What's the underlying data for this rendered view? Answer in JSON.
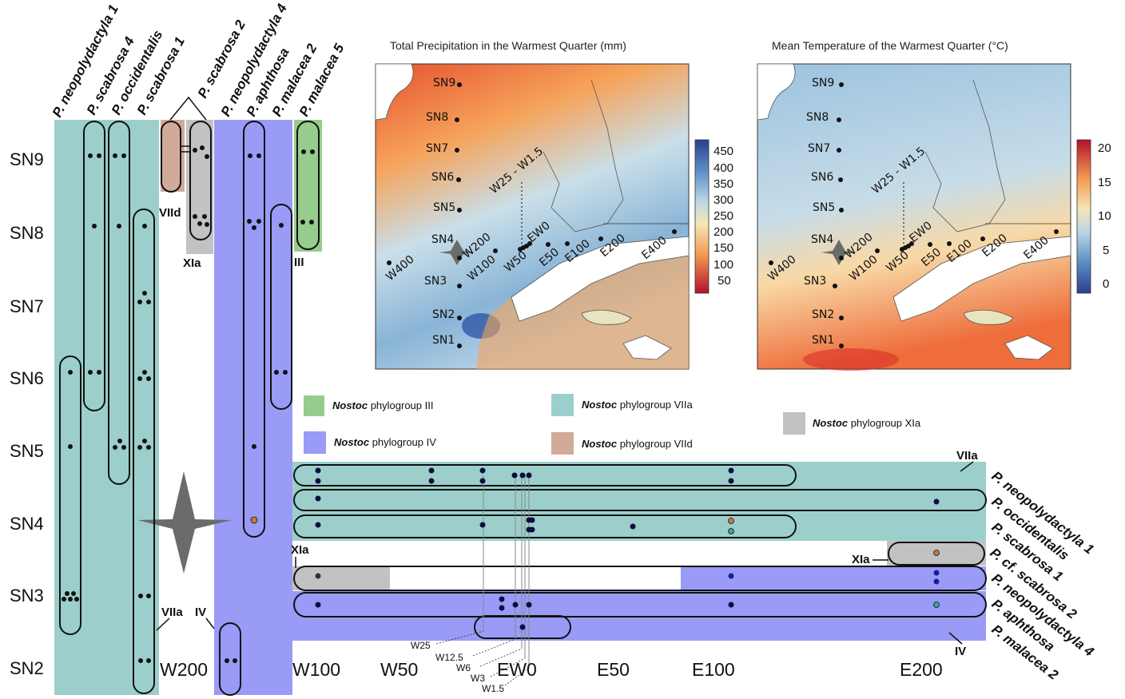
{
  "colors": {
    "III": "#96cc8c",
    "IV": "#9a9af7",
    "VIIa": "#9ccfcb",
    "VIId": "#d2aa9a",
    "XIa": "#c2c2c2",
    "star": "#6b6b6b"
  },
  "vertical": {
    "sn_labels": [
      "SN9",
      "SN8",
      "SN7",
      "SN6",
      "SN5",
      "SN4",
      "SN3",
      "SN2"
    ],
    "species": [
      "P. neopolydactyla 1",
      "P. scabrosa 4",
      "P. occidentalis",
      "P. scabrosa 1",
      "P. scabrosa 2",
      "P. neopolydactyla 4",
      "P. aphthosa",
      "P. malacea 2",
      "P. malacea 5"
    ],
    "group_labels": {
      "VIId": "VIId",
      "XIa": "XIa",
      "III": "III",
      "VIIa": "VIIa",
      "IV": "IV"
    },
    "w200": "W200"
  },
  "horizontal": {
    "x_labels": [
      "W100",
      "W50",
      "EW0",
      "E50",
      "E100",
      "E200"
    ],
    "small_labels": [
      "W25",
      "W12.5",
      "W6",
      "W3",
      "W1.5"
    ],
    "species": [
      "P. neopolydactyla 1",
      "P. occidentalis",
      "P. scabrosa 1",
      "P. cf. scabrosa 2",
      "P. neopolydactyla 4",
      "P. aphthosa",
      "P. malacea 2"
    ],
    "group_labels": {
      "VIIa": "VIIa",
      "XIa_left": "XIa",
      "XIa_right": "XIa",
      "IV": "IV"
    }
  },
  "legend": [
    {
      "genus": "Nostoc",
      "label": "phylogroup III",
      "group": "III"
    },
    {
      "genus": "Nostoc",
      "label": "phylogroup VIIa",
      "group": "VIIa"
    },
    {
      "genus": "Nostoc",
      "label": "phylogroup XIa",
      "group": "XIa"
    },
    {
      "genus": "Nostoc",
      "label": "phylogroup IV",
      "group": "IV"
    },
    {
      "genus": "Nostoc",
      "label": "phylogroup VIId",
      "group": "VIId"
    }
  ],
  "maps": {
    "precip": {
      "title": "Total Precipitation in the Warmest Quarter (mm)",
      "colorbar": [
        "450",
        "400",
        "350",
        "300",
        "250",
        "200",
        "150",
        "100",
        "50"
      ]
    },
    "temp": {
      "title": "Mean Temperature of the Warmest Quarter (°C)",
      "colorbar": [
        "20",
        "15",
        "10",
        "5",
        "0"
      ]
    },
    "sites": [
      "SN9",
      "SN8",
      "SN7",
      "SN6",
      "SN5",
      "SN4",
      "SN3",
      "SN2",
      "SN1",
      "W400",
      "W200",
      "W100",
      "W50",
      "EW0",
      "E50",
      "E100",
      "E200",
      "E400",
      "W25 - W1.5"
    ]
  }
}
